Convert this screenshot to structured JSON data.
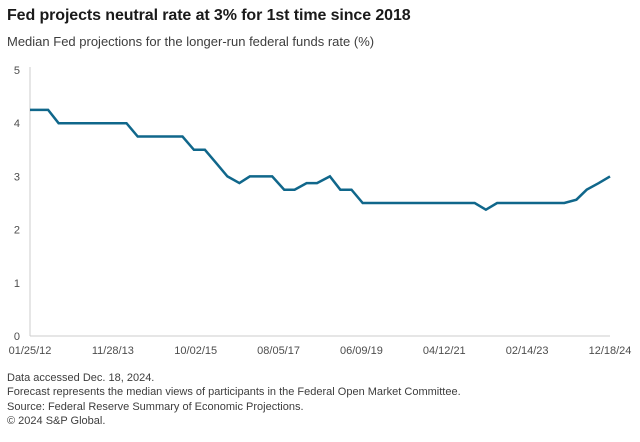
{
  "chart_data": {
    "type": "line",
    "title": "Fed projects neutral rate at 3% for 1st time since 2018",
    "subtitle": "Median Fed projections for the longer-run federal funds rate (%)",
    "line_color": "#10678b",
    "axis_color": "#cccccc",
    "grid": false,
    "legend": false,
    "y_axis": {
      "label": "",
      "ticks": [
        0,
        1,
        2,
        3,
        4,
        5
      ],
      "range": [
        0,
        5
      ]
    },
    "x_axis": {
      "tick_labels": [
        "01/25/12",
        "11/28/13",
        "10/02/15",
        "08/05/17",
        "06/09/19",
        "04/12/21",
        "02/14/23",
        "12/18/24"
      ]
    },
    "series": [
      {
        "name": "Median Fed projection for the longer-run federal funds rate (%)",
        "points": [
          {
            "date": "01/25/12",
            "value": 4.25
          },
          {
            "date": "04/25/12",
            "value": 4.25
          },
          {
            "date": "06/20/12",
            "value": 4.25
          },
          {
            "date": "09/13/12",
            "value": 4.0
          },
          {
            "date": "12/12/12",
            "value": 4.0
          },
          {
            "date": "03/20/13",
            "value": 4.0
          },
          {
            "date": "06/19/13",
            "value": 4.0
          },
          {
            "date": "09/18/13",
            "value": 4.0
          },
          {
            "date": "12/18/13",
            "value": 4.0
          },
          {
            "date": "03/19/14",
            "value": 4.0
          },
          {
            "date": "06/18/14",
            "value": 3.75
          },
          {
            "date": "09/17/14",
            "value": 3.75
          },
          {
            "date": "12/17/14",
            "value": 3.75
          },
          {
            "date": "03/18/15",
            "value": 3.75
          },
          {
            "date": "06/17/15",
            "value": 3.75
          },
          {
            "date": "09/17/15",
            "value": 3.5
          },
          {
            "date": "12/16/15",
            "value": 3.5
          },
          {
            "date": "03/16/16",
            "value": 3.25
          },
          {
            "date": "06/15/16",
            "value": 3.0
          },
          {
            "date": "09/21/16",
            "value": 2.875
          },
          {
            "date": "12/14/16",
            "value": 3.0
          },
          {
            "date": "03/15/17",
            "value": 3.0
          },
          {
            "date": "06/14/17",
            "value": 3.0
          },
          {
            "date": "09/20/17",
            "value": 2.75
          },
          {
            "date": "12/13/17",
            "value": 2.75
          },
          {
            "date": "03/21/18",
            "value": 2.875
          },
          {
            "date": "06/13/18",
            "value": 2.875
          },
          {
            "date": "09/26/18",
            "value": 3.0
          },
          {
            "date": "12/19/18",
            "value": 2.75
          },
          {
            "date": "03/20/19",
            "value": 2.75
          },
          {
            "date": "06/19/19",
            "value": 2.5
          },
          {
            "date": "09/18/19",
            "value": 2.5
          },
          {
            "date": "12/11/19",
            "value": 2.5
          },
          {
            "date": "06/10/20",
            "value": 2.5
          },
          {
            "date": "09/16/20",
            "value": 2.5
          },
          {
            "date": "12/16/20",
            "value": 2.5
          },
          {
            "date": "03/17/21",
            "value": 2.5
          },
          {
            "date": "06/16/21",
            "value": 2.5
          },
          {
            "date": "09/22/21",
            "value": 2.5
          },
          {
            "date": "12/15/21",
            "value": 2.5
          },
          {
            "date": "03/16/22",
            "value": 2.375
          },
          {
            "date": "06/15/22",
            "value": 2.5
          },
          {
            "date": "09/21/22",
            "value": 2.5
          },
          {
            "date": "12/14/22",
            "value": 2.5
          },
          {
            "date": "03/22/23",
            "value": 2.5
          },
          {
            "date": "06/14/23",
            "value": 2.5
          },
          {
            "date": "09/20/23",
            "value": 2.5
          },
          {
            "date": "12/13/23",
            "value": 2.5
          },
          {
            "date": "03/20/24",
            "value": 2.5625
          },
          {
            "date": "06/12/24",
            "value": 2.75
          },
          {
            "date": "09/18/24",
            "value": 2.875
          },
          {
            "date": "12/18/24",
            "value": 3.0
          }
        ]
      }
    ]
  },
  "footer": {
    "lines": [
      "Data accessed Dec. 18, 2024.",
      "Forecast represents the median views of participants in the Federal Open Market Committee.",
      "Source: Federal Reserve Summary of Economic Projections.",
      "© 2024 S&P Global."
    ]
  }
}
